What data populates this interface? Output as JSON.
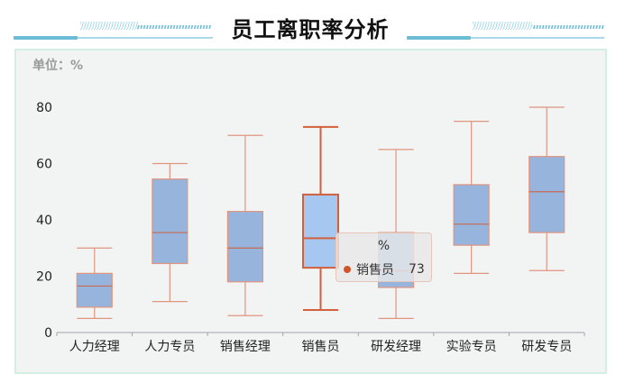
{
  "header": {
    "title": "员工离职率分析"
  },
  "panel": {
    "unit_label": "单位：%"
  },
  "tooltip": {
    "title": "%",
    "series_name": "销售员",
    "value": "73",
    "marker_color": "#d2532a"
  },
  "colors": {
    "box_fill": "#97b5dc",
    "box_fill_highlight": "#a6c8f0",
    "box_stroke": "#e0957f",
    "box_stroke_highlight": "#d2603c",
    "median_stroke": "#c96a52",
    "axis": "#a0a4a8",
    "header_accent": "#5bb6d3",
    "panel_border": "#d3eee3",
    "panel_bg": "#f2f4f3"
  },
  "chart_data": {
    "type": "boxplot",
    "title": "员工离职率分析",
    "ylabel": "单位：%",
    "xlabel": "",
    "ylim": [
      0,
      80
    ],
    "yticks": [
      0,
      20,
      40,
      60,
      80
    ],
    "grid": false,
    "legend": "none",
    "categories": [
      "人力经理",
      "人力专员",
      "销售经理",
      "销售员",
      "研发经理",
      "实验专员",
      "研发专员"
    ],
    "series": [
      {
        "name": "%",
        "values": [
          {
            "min": 5,
            "q1": 9,
            "median": 16.5,
            "q3": 21,
            "max": 30
          },
          {
            "min": 11,
            "q1": 24.5,
            "median": 35.5,
            "q3": 54.5,
            "max": 60
          },
          {
            "min": 6,
            "q1": 18,
            "median": 30,
            "q3": 43,
            "max": 70
          },
          {
            "min": 8,
            "q1": 23,
            "median": 33.5,
            "q3": 49,
            "max": 73
          },
          {
            "min": 5,
            "q1": 16,
            "median": 22,
            "q3": 35.5,
            "max": 65
          },
          {
            "min": 21,
            "q1": 31,
            "median": 38.5,
            "q3": 52.5,
            "max": 75
          },
          {
            "min": 22,
            "q1": 35.5,
            "median": 50,
            "q3": 62.5,
            "max": 80
          }
        ]
      }
    ],
    "highlighted_category": "销售员",
    "annotations": [
      {
        "type": "tooltip",
        "category": "销售员",
        "text": "% 销售员 73"
      }
    ]
  }
}
